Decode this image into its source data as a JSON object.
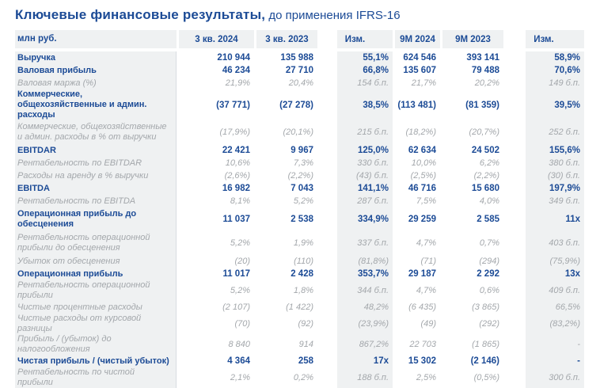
{
  "title": {
    "main": "Ключевые финансовые результаты,",
    "suffix": " до применения IFRS-16"
  },
  "colors": {
    "accent_navy": "#1c4b96",
    "secondary_text": "#a3a7ab",
    "column_shade": "#eff1f2",
    "divider": "#d9dde1"
  },
  "table": {
    "unit_label": "млн руб.",
    "columns": [
      "3 кв. 2024",
      "3 кв. 2023",
      "Изм.",
      "9М 2024",
      "9М 2023",
      "Изм."
    ],
    "rows": [
      {
        "label": "Выручка",
        "style": "primary",
        "tall": false,
        "values": [
          "210 944",
          "135 988",
          "55,1%",
          "624 546",
          "393 141",
          "58,9%"
        ]
      },
      {
        "label": "Валовая прибыль",
        "style": "primary",
        "tall": false,
        "values": [
          "46 234",
          "27 710",
          "66,8%",
          "135 607",
          "79 488",
          "70,6%"
        ]
      },
      {
        "label": "Валовая маржа (%)",
        "style": "secondary",
        "tall": false,
        "values": [
          "21,9%",
          "20,4%",
          "154 б.п.",
          "21,7%",
          "20,2%",
          "149 б.п."
        ]
      },
      {
        "label": "Коммерческие, общехозяйственные и админ. расходы",
        "style": "primary",
        "tall": true,
        "values": [
          "(37 771)",
          "(27 278)",
          "38,5%",
          "(113 481)",
          "(81 359)",
          "39,5%"
        ]
      },
      {
        "label": "Коммерческие, общехозяйственные и админ. расходы в % от выручки",
        "style": "secondary",
        "tall": true,
        "values": [
          "(17,9%)",
          "(20,1%)",
          "215 б.п.",
          "(18,2%)",
          "(20,7%)",
          "252 б.п."
        ]
      },
      {
        "label": "EBITDAR",
        "style": "primary",
        "tall": false,
        "values": [
          "22 421",
          "9 967",
          "125,0%",
          "62 634",
          "24 502",
          "155,6%"
        ]
      },
      {
        "label": "Рентабельность по EBITDAR",
        "style": "secondary",
        "tall": false,
        "values": [
          "10,6%",
          "7,3%",
          "330 б.п.",
          "10,0%",
          "6,2%",
          "380 б.п."
        ]
      },
      {
        "label": "Расходы на аренду в % выручки",
        "style": "secondary",
        "tall": false,
        "values": [
          "(2,6%)",
          "(2,2%)",
          "(43) б.п.",
          "(2,5%)",
          "(2,2%)",
          "(30) б.п."
        ]
      },
      {
        "label": "EBITDA",
        "style": "primary",
        "tall": false,
        "values": [
          "16 982",
          "7 043",
          "141,1%",
          "46 716",
          "15 680",
          "197,9%"
        ]
      },
      {
        "label": "Рентабельность по EBITDA",
        "style": "secondary",
        "tall": false,
        "values": [
          "8,1%",
          "5,2%",
          "287 б.п.",
          "7,5%",
          "4,0%",
          "349 б.п."
        ]
      },
      {
        "label": "Операционная прибыль до обесценения",
        "style": "primary",
        "tall": true,
        "values": [
          "11 037",
          "2 538",
          "334,9%",
          "29 259",
          "2 585",
          "11x"
        ]
      },
      {
        "label": "Рентабельность операционной прибыли до обесценения",
        "style": "secondary",
        "tall": true,
        "values": [
          "5,2%",
          "1,9%",
          "337 б.п.",
          "4,7%",
          "0,7%",
          "403 б.п."
        ]
      },
      {
        "label": "Убыток от обесценения",
        "style": "secondary",
        "tall": false,
        "values": [
          "(20)",
          "(110)",
          "(81,8%)",
          "(71)",
          "(294)",
          "(75,9%)"
        ]
      },
      {
        "label": "Операционная прибыль",
        "style": "primary",
        "tall": false,
        "values": [
          "11 017",
          "2 428",
          "353,7%",
          "29 187",
          "2 292",
          "13x"
        ]
      },
      {
        "label": "Рентабельность операционной прибыли",
        "style": "secondary",
        "tall": false,
        "values": [
          "5,2%",
          "1,8%",
          "344 б.п.",
          "4,7%",
          "0,6%",
          "409 б.п."
        ]
      },
      {
        "label": "Чистые процентные расходы",
        "style": "secondary",
        "tall": false,
        "values": [
          "(2 107)",
          "(1 422)",
          "48,2%",
          "(6 435)",
          "(3 865)",
          "66,5%"
        ]
      },
      {
        "label": "Чистые расходы от курсовой разницы",
        "style": "secondary",
        "tall": false,
        "values": [
          "(70)",
          "(92)",
          "(23,9%)",
          "(49)",
          "(292)",
          "(83,2%)"
        ]
      },
      {
        "label": "Прибыль / (убыток) до налогообложения",
        "style": "secondary",
        "tall": false,
        "values": [
          "8 840",
          "914",
          "867,2%",
          "22 703",
          "(1 865)",
          "-"
        ]
      },
      {
        "label": "Чистая прибыль / (чистый убыток)",
        "style": "primary",
        "tall": false,
        "values": [
          "4 364",
          "258",
          "17x",
          "15 302",
          "(2 146)",
          "-"
        ]
      },
      {
        "label": "Рентабельность по чистой прибыли",
        "style": "secondary",
        "tall": false,
        "values": [
          "2,1%",
          "0,2%",
          "188 б.п.",
          "2,5%",
          "(0,5%)",
          "300 б.п."
        ]
      }
    ]
  }
}
